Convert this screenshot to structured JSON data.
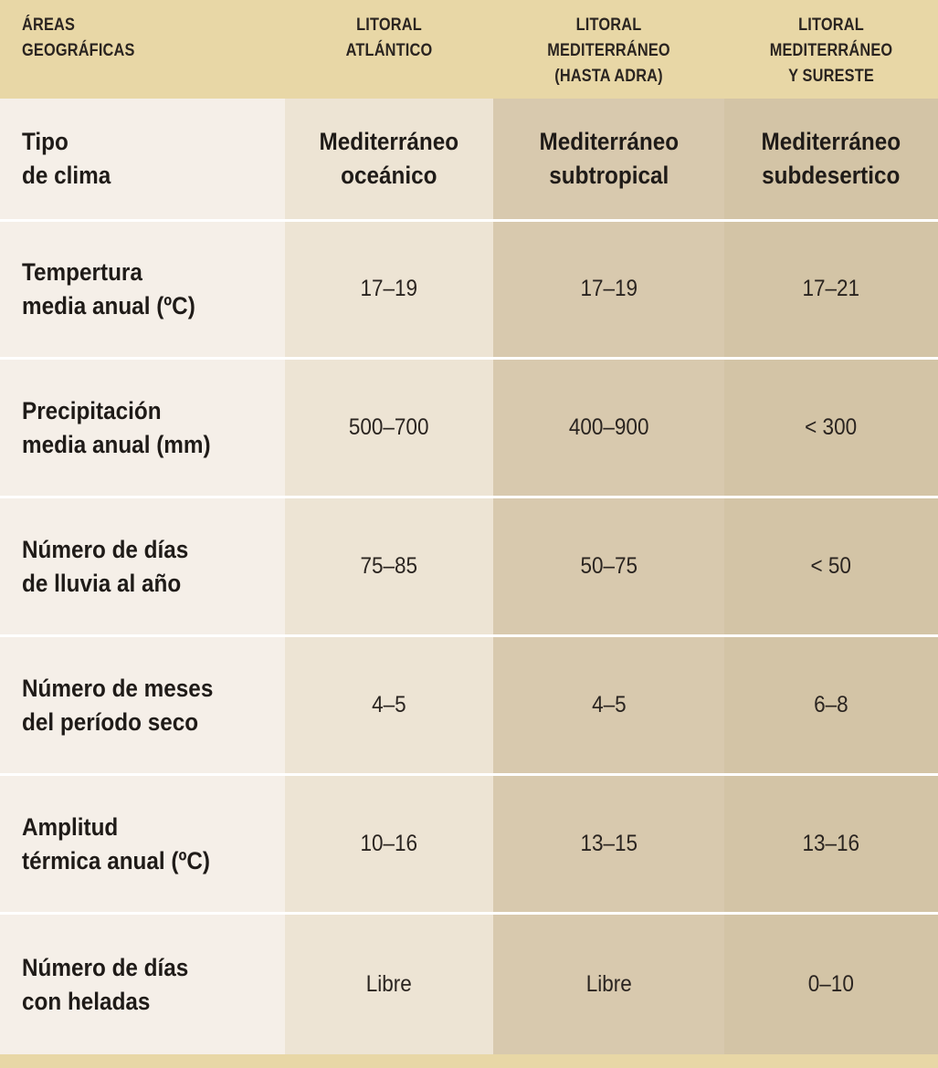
{
  "header": {
    "col0": "ÁREAS\nGEOGRÁFICAS",
    "col1": "LITORAL\nATLÁNTICO",
    "col2": "LITORAL\nMEDITERRÁNEO\n(HASTA ADRA)",
    "col3": "LITORAL\nMEDITERRÁNEO\nY SURESTE"
  },
  "rows": [
    {
      "label": "Tipo\nde clima",
      "values": [
        "Mediterráneo\noceánico",
        "Mediterráneo\nsubtropical",
        "Mediterráneo\nsubdesertico"
      ]
    },
    {
      "label": "Tempertura\nmedia anual (ºC)",
      "values": [
        "17–19",
        "17–19",
        "17–21"
      ]
    },
    {
      "label": "Precipitación\nmedia anual (mm)",
      "values": [
        "500–700",
        "400–900",
        "< 300"
      ]
    },
    {
      "label": "Número de días\nde lluvia al año",
      "values": [
        "75–85",
        "50–75",
        "< 50"
      ]
    },
    {
      "label": "Número de meses\ndel período seco",
      "values": [
        "4–5",
        "4–5",
        "6–8"
      ]
    },
    {
      "label": "Amplitud\ntérmica anual (ºC)",
      "values": [
        "10–16",
        "13–15",
        "13–16"
      ]
    },
    {
      "label": "Número de días\ncon heladas",
      "values": [
        "Libre",
        "Libre",
        "0–10"
      ]
    }
  ],
  "colors": {
    "header_bg": "#e8d7a6",
    "label_col_bg": "#f5efe8",
    "col1_bg": "#ede4d4",
    "col2_bg": "#d8c9ae",
    "col3_bg": "#d3c4a6",
    "separator": "#ffffff"
  }
}
